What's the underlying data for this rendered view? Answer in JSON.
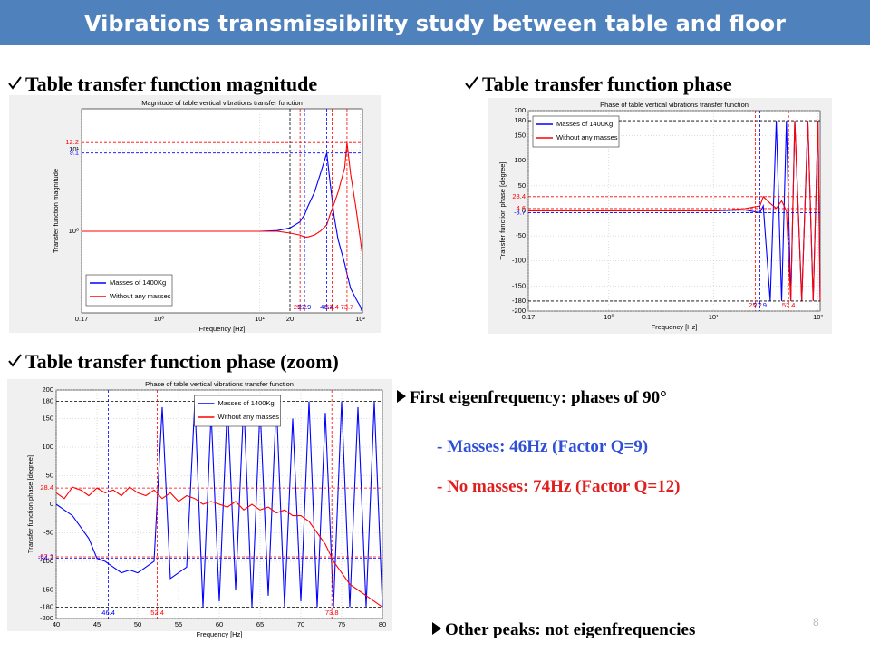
{
  "header": {
    "title": "Vibrations transmissibility study between table and floor"
  },
  "captions": [
    "Table transfer function magnitude",
    "Table transfer function phase",
    "Table transfer function phase (zoom)"
  ],
  "bullets": {
    "first": "First eigenfrequency: phases of 90°",
    "masses": "- Masses: 46Hz (Factor Q=9)",
    "no_masses": "- No masses: 74Hz (Factor Q=12)",
    "other": "Other peaks: not eigenfrequencies"
  },
  "page_number": "8",
  "chart_data": [
    {
      "type": "line",
      "title": "Magnitude of table vertical vibrations transfer function",
      "xlabel": "Frequency [Hz]",
      "ylabel": "Transfer function magnitude",
      "xscale": "log",
      "yscale": "log",
      "grid": true,
      "legend": "lower left",
      "xlim": [
        0.17,
        105
      ],
      "ylim": [
        0.1,
        31.6
      ],
      "xticks": [
        0.17,
        {
          "value": 1,
          "label": "10⁰"
        },
        {
          "value": 10,
          "label": "10¹"
        },
        20,
        {
          "value": 100,
          "label": "10²"
        }
      ],
      "yticks": [
        {
          "value": 1,
          "label": "10⁰"
        },
        {
          "value": 10,
          "label": "10¹"
        }
      ],
      "x": [
        0.17,
        0.3,
        0.5,
        1,
        2,
        5,
        10,
        15,
        20,
        25,
        28,
        30,
        35,
        40,
        46.4,
        50,
        55,
        60,
        70,
        73.7,
        80,
        90,
        100,
        105
      ],
      "series": [
        {
          "name": "Masses of 1400Kg",
          "color": "#0000ff",
          "values": [
            1,
            1,
            1,
            1,
            1,
            1,
            1,
            1.02,
            1.1,
            1.3,
            1.6,
            2,
            3,
            5,
            9.1,
            4,
            1.5,
            0.8,
            0.4,
            0.3,
            0.2,
            0.15,
            0.12,
            0.1
          ]
        },
        {
          "name": "Without any masses",
          "color": "#ff0000",
          "values": [
            1,
            1,
            1,
            1,
            1,
            1,
            1,
            1,
            0.95,
            0.9,
            0.85,
            0.85,
            0.9,
            1,
            1.2,
            1.6,
            2.2,
            3,
            6,
            12.2,
            5,
            2,
            0.8,
            0.5
          ]
        }
      ],
      "hlines": [
        {
          "value": 12.2,
          "color": "#ff0000"
        },
        {
          "value": 9.1,
          "color": "#0000ff"
        }
      ],
      "vlines": [
        {
          "value": 20,
          "color": "#000000"
        },
        {
          "value": 25.2,
          "color": "#ff0000"
        },
        {
          "value": 27.9,
          "color": "#0000ff"
        },
        {
          "value": 46.4,
          "color": "#0000ff"
        },
        {
          "value": 52.4,
          "color": "#ff0000"
        },
        {
          "value": 73.7,
          "color": "#ff0000"
        }
      ]
    },
    {
      "type": "line",
      "title": "Phase of table vertical vibrations transfer function",
      "xlabel": "Frequency [Hz]",
      "ylabel": "Transfer function phase [degree]",
      "xscale": "log",
      "yscale": "linear",
      "grid": true,
      "legend": "upper left",
      "xlim": [
        0.17,
        105
      ],
      "ylim": [
        -200,
        200
      ],
      "xticks": [
        0.17,
        {
          "value": 1,
          "label": "10⁰"
        },
        {
          "value": 10,
          "label": "10¹"
        },
        {
          "value": 100,
          "label": "10²"
        }
      ],
      "yticks": [
        200,
        180,
        150,
        100,
        50,
        0,
        -50,
        -100,
        -150,
        -180,
        -200
      ],
      "x": [
        0.17,
        0.5,
        1,
        5,
        10,
        20,
        27.9,
        30,
        35,
        40,
        45,
        50,
        55,
        60,
        70,
        80,
        90,
        100,
        105
      ],
      "series": [
        {
          "name": "Masses of 1400Kg",
          "color": "#0000ff",
          "values": [
            0,
            0,
            0,
            0,
            0,
            2,
            -3.7,
            10,
            -180,
            180,
            -180,
            180,
            -180,
            180,
            -180,
            180,
            -180,
            180,
            -180
          ]
        },
        {
          "name": "Without any masses",
          "color": "#ff0000",
          "values": [
            0,
            0,
            0,
            0,
            0,
            4.6,
            10,
            28.4,
            15,
            5,
            20,
            0,
            -180,
            180,
            -180,
            180,
            -180,
            180,
            -180
          ]
        }
      ],
      "hlines": [
        {
          "value": 180,
          "color": "#000000"
        },
        {
          "value": -180,
          "color": "#000000"
        },
        {
          "value": 28.4,
          "color": "#ff0000"
        },
        {
          "value": 4.6,
          "color": "#ff0000"
        },
        {
          "value": -3.7,
          "color": "#0000ff"
        }
      ],
      "vlines": [
        {
          "value": 25.2,
          "color": "#ff0000"
        },
        {
          "value": 27.9,
          "color": "#0000ff"
        },
        {
          "value": 52.4,
          "color": "#ff0000"
        }
      ]
    },
    {
      "type": "line",
      "title": "Phase of table vertical vibrations transfer function",
      "xlabel": "Frequency [Hz]",
      "ylabel": "Transfer function phase [degree]",
      "xscale": "linear",
      "yscale": "linear",
      "grid": true,
      "legend": "upper center",
      "xlim": [
        40,
        80
      ],
      "ylim": [
        -200,
        200
      ],
      "xticks": [
        40,
        45,
        50,
        55,
        60,
        65,
        70,
        75,
        80
      ],
      "yticks": [
        200,
        180,
        150,
        100,
        50,
        0,
        -50,
        -100,
        -150,
        -180,
        -200
      ],
      "x": [
        40,
        41,
        42,
        43,
        44,
        45,
        46,
        47,
        48,
        49,
        50,
        51,
        52,
        53,
        54,
        55,
        56,
        57,
        58,
        59,
        60,
        61,
        62,
        63,
        64,
        65,
        66,
        67,
        68,
        69,
        70,
        71,
        72,
        73,
        74,
        75,
        76,
        77,
        78,
        79,
        80
      ],
      "series": [
        {
          "name": "Masses of 1400Kg",
          "color": "#0000ff",
          "values": [
            0,
            -10,
            -20,
            -40,
            -60,
            -94.7,
            -100,
            -110,
            -120,
            -115,
            -120,
            -110,
            -100,
            170,
            -130,
            -120,
            -110,
            180,
            -180,
            160,
            -170,
            180,
            -150,
            180,
            -180,
            170,
            -160,
            180,
            -180,
            150,
            -170,
            180,
            -180,
            160,
            -180,
            180,
            -180,
            170,
            -180,
            180,
            -180
          ]
        },
        {
          "name": "Without any masses",
          "color": "#ff0000",
          "values": [
            20,
            10,
            30,
            25,
            15,
            28.4,
            20,
            25,
            15,
            30,
            20,
            15,
            25,
            10,
            20,
            5,
            15,
            10,
            0,
            5,
            0,
            -5,
            5,
            -10,
            0,
            -10,
            -5,
            -15,
            -10,
            -20,
            -20,
            -30,
            -50,
            -70,
            -100,
            -120,
            -140,
            -150,
            -160,
            -170,
            -180
          ]
        }
      ],
      "hlines": [
        {
          "value": 180,
          "color": "#000000"
        },
        {
          "value": -180,
          "color": "#000000"
        },
        {
          "value": 28.4,
          "color": "#ff0000"
        },
        {
          "value": -92.1,
          "color": "#ff0000"
        },
        {
          "value": -94.7,
          "color": "#0000ff"
        }
      ],
      "vlines": [
        {
          "value": 46.4,
          "color": "#0000ff"
        },
        {
          "value": 52.4,
          "color": "#ff0000"
        },
        {
          "value": 73.8,
          "color": "#ff0000"
        }
      ]
    }
  ]
}
